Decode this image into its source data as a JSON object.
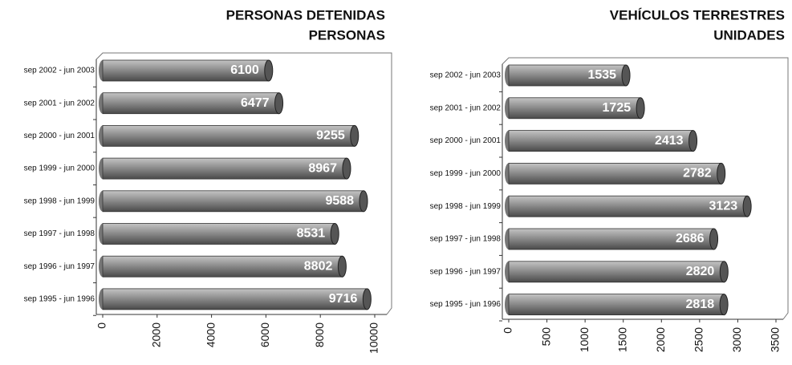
{
  "chart_data": [
    {
      "type": "bar",
      "title": "PERSONAS DETENIDAS",
      "subtitle": "PERSONAS",
      "categories": [
        "sep 2002 - jun 2003",
        "sep 2001 - jun 2002",
        "sep 2000 - jun 2001",
        "sep 1999 - jun 2000",
        "sep 1998 - jun 1999",
        "sep 1997 - jun 1998",
        "sep 1996 - jun 1997",
        "sep 1995 - jun 1996"
      ],
      "values": [
        6100,
        6477,
        9255,
        8967,
        9588,
        8531,
        8802,
        9716
      ],
      "color": "#8a8a8a",
      "xlim": [
        0,
        10000
      ],
      "xticks": [
        0,
        2000,
        4000,
        6000,
        8000,
        10000
      ]
    },
    {
      "type": "bar",
      "title": "VEHÍCULOS TERRESTRES",
      "subtitle": "UNIDADES",
      "categories": [
        "sep 2002 - jun 2003",
        "sep 2001 - jun 2002",
        "sep 2000 - jun 2001",
        "sep 1999 - jun 2000",
        "sep 1998 - jun 1999",
        "sep 1997 - jun 1998",
        "sep 1996 - jun 1997",
        "sep 1995 - jun 1996"
      ],
      "values": [
        1535,
        1725,
        2413,
        2782,
        3123,
        2686,
        2820,
        2818
      ],
      "color": "#8a8a8a",
      "xlim": [
        0,
        3500
      ],
      "xticks": [
        0,
        500,
        1000,
        1500,
        2000,
        2500,
        3000,
        3500
      ]
    }
  ]
}
